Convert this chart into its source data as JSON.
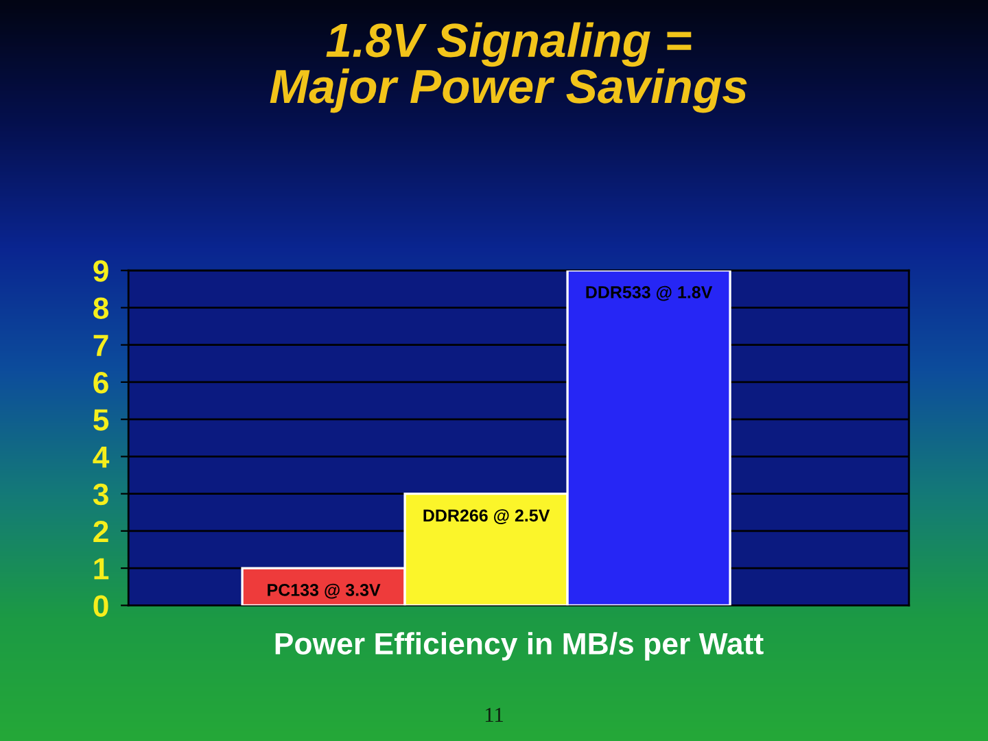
{
  "chart_data": {
    "type": "bar",
    "title": "1.8V Signaling =\nMajor Power Savings",
    "xlabel": "Power Efficiency in MB/s per Watt",
    "categories": [
      "PC133 @ 3.3V",
      "DDR266 @ 2.5V",
      "DDR533 @ 1.8V"
    ],
    "values": [
      1,
      3,
      9
    ],
    "colors": [
      "#ee3b3b",
      "#fbf52a",
      "#2626f5"
    ],
    "ylim": [
      0,
      9
    ],
    "yticks": [
      0,
      1,
      2,
      3,
      4,
      5,
      6,
      7,
      8,
      9
    ],
    "grid": "y",
    "annotations": [
      "11"
    ]
  }
}
